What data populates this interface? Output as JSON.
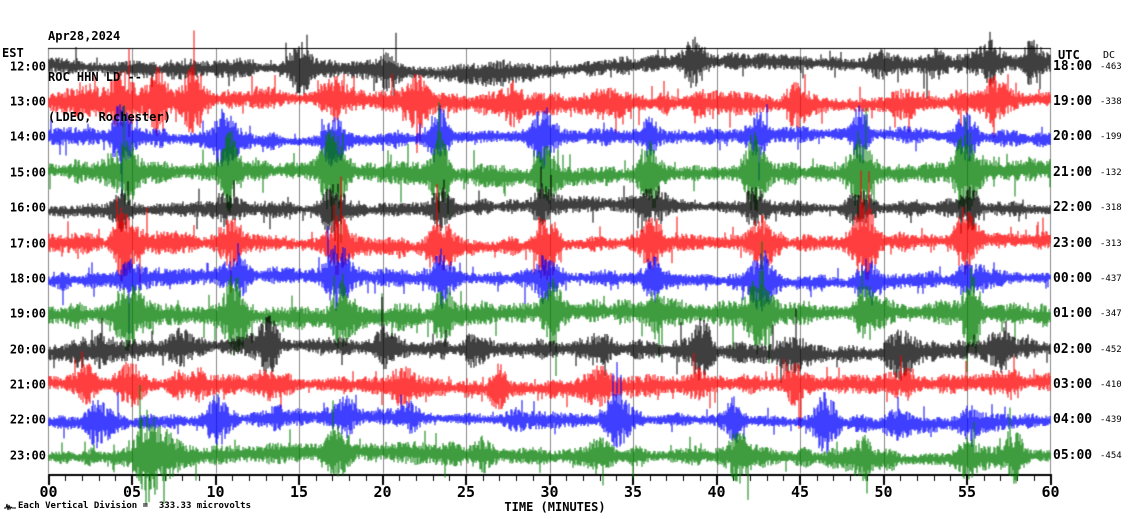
{
  "header": {
    "date": "Apr28,2024",
    "station": "ROC HHN LD --",
    "network": "(LDEO, Rochester)"
  },
  "chart_data": {
    "type": "line",
    "subtype": "helicorder-seismogram",
    "x_axis": {
      "label": "TIME (MINUTES)",
      "min": 0,
      "max": 60,
      "major_tick_step": 5,
      "minor_tick_step": 1,
      "tick_labels": [
        "00",
        "05",
        "10",
        "15",
        "20",
        "25",
        "30",
        "35",
        "40",
        "45",
        "50",
        "55",
        "60"
      ]
    },
    "left_axis": {
      "label": "EST"
    },
    "right_axis": {
      "label": "UTC"
    },
    "dc_column": {
      "label": "DC"
    },
    "caption": "Each Vertical Division =  333.33 microvolts",
    "microvolts_per_division": 333.33,
    "grid": "on",
    "colors": {
      "grid": "#8a8a8a",
      "axis": "#000000",
      "trace_cycle": [
        "#000000",
        "#ff0000",
        "#0000ff",
        "#007f00"
      ]
    },
    "rows": [
      {
        "est": "12:00",
        "utc": "18:00",
        "dc": "-463",
        "color": "#000000",
        "amp": 6.5,
        "wander": 5,
        "seed": 101,
        "events": [
          [
            15,
            2.6
          ],
          [
            20.5,
            1.6
          ],
          [
            27,
            1.2
          ],
          [
            38.5,
            1.8
          ],
          [
            49.5,
            2.2
          ],
          [
            53,
            2.0
          ],
          [
            56.5,
            2.8
          ],
          [
            59,
            2.6
          ]
        ]
      },
      {
        "est": "13:00",
        "utc": "19:00",
        "dc": "-338",
        "color": "#ff0000",
        "amp": 8,
        "wander": 2.5,
        "seed": 102,
        "events": [
          [
            2.2,
            1.4
          ],
          [
            4.3,
            1.8
          ],
          [
            6.4,
            2.0
          ],
          [
            8.6,
            1.6
          ],
          [
            17,
            1.2
          ],
          [
            22,
            1.6
          ],
          [
            28,
            1.4
          ],
          [
            33.5,
            1.6
          ],
          [
            39,
            1.8
          ],
          [
            45,
            1.4
          ],
          [
            51,
            1.6
          ],
          [
            56.8,
            2.2
          ]
        ]
      },
      {
        "est": "14:00",
        "utc": "20:00",
        "dc": "-199",
        "color": "#0000ff",
        "amp": 6,
        "wander": 2.5,
        "seed": 103,
        "events": [
          [
            4.3,
            2.6
          ],
          [
            10.6,
            2.8
          ],
          [
            16.9,
            2.4
          ],
          [
            23.2,
            2.6
          ],
          [
            29.6,
            2.8
          ],
          [
            35.9,
            2.4
          ],
          [
            42.2,
            2.6
          ],
          [
            48.5,
            2.5
          ],
          [
            54.8,
            2.7
          ]
        ]
      },
      {
        "est": "15:00",
        "utc": "21:00",
        "dc": "-132",
        "color": "#007f00",
        "amp": 8,
        "wander": 2.5,
        "seed": 104,
        "events": [
          [
            4.4,
            3.0
          ],
          [
            10.7,
            2.6
          ],
          [
            17.0,
            3.0
          ],
          [
            23.3,
            2.6
          ],
          [
            29.7,
            3.0
          ],
          [
            36.0,
            2.6
          ],
          [
            42.3,
            2.8
          ],
          [
            48.6,
            2.6
          ],
          [
            54.9,
            3.0
          ]
        ]
      },
      {
        "est": "16:00",
        "utc": "22:00",
        "dc": "-318",
        "color": "#000000",
        "amp": 5.5,
        "wander": 2.5,
        "seed": 105,
        "events": [
          [
            4.5,
            2.8
          ],
          [
            10.8,
            2.6
          ],
          [
            17.1,
            2.9
          ],
          [
            23.4,
            2.5
          ],
          [
            29.8,
            2.9
          ],
          [
            36.1,
            2.5
          ],
          [
            42.4,
            2.7
          ],
          [
            48.7,
            3.0
          ],
          [
            55.0,
            2.8
          ]
        ]
      },
      {
        "est": "17:00",
        "utc": "23:00",
        "dc": "-313",
        "color": "#ff0000",
        "amp": 7,
        "wander": 2.5,
        "seed": 106,
        "events": [
          [
            4.6,
            3.4
          ],
          [
            10.9,
            3.0
          ],
          [
            17.2,
            3.2
          ],
          [
            23.5,
            2.8
          ],
          [
            29.9,
            3.2
          ],
          [
            36.2,
            2.8
          ],
          [
            42.5,
            3.0
          ],
          [
            48.8,
            3.2
          ],
          [
            55.1,
            3.4
          ]
        ]
      },
      {
        "est": "18:00",
        "utc": "00:00",
        "dc": "-437",
        "color": "#0000ff",
        "amp": 6,
        "wander": 2.5,
        "seed": 107,
        "events": [
          [
            4.7,
            3.0
          ],
          [
            11.0,
            2.6
          ],
          [
            17.3,
            2.8
          ],
          [
            23.6,
            2.5
          ],
          [
            30.0,
            2.8
          ],
          [
            36.3,
            2.4
          ],
          [
            42.6,
            2.6
          ],
          [
            48.9,
            3.2
          ],
          [
            55.2,
            2.8
          ]
        ]
      },
      {
        "est": "19:00",
        "utc": "01:00",
        "dc": "-347",
        "color": "#007f00",
        "amp": 8.5,
        "wander": 2.5,
        "seed": 108,
        "events": [
          [
            4.8,
            2.4
          ],
          [
            11.1,
            2.2
          ],
          [
            17.4,
            2.4
          ],
          [
            23.7,
            2.2
          ],
          [
            30.1,
            2.6
          ],
          [
            36.4,
            2.2
          ],
          [
            42.7,
            2.4
          ],
          [
            49.0,
            2.6
          ],
          [
            55.3,
            2.4
          ]
        ]
      },
      {
        "est": "20:00",
        "utc": "02:00",
        "dc": "-452",
        "color": "#000000",
        "amp": 7,
        "wander": 3,
        "seed": 109,
        "events": [
          [
            2.5,
            1.6
          ],
          [
            8,
            2.4
          ],
          [
            13,
            2.6
          ],
          [
            20,
            1.4
          ],
          [
            26,
            2.2
          ],
          [
            33,
            1.2
          ],
          [
            39,
            2.4
          ],
          [
            44.5,
            1.8
          ],
          [
            51,
            2.4
          ],
          [
            57,
            1.4
          ]
        ]
      },
      {
        "est": "21:00",
        "utc": "03:00",
        "dc": "-410",
        "color": "#ff0000",
        "amp": 7,
        "wander": 2.5,
        "seed": 110,
        "events": [
          [
            2,
            1.6
          ],
          [
            5,
            1.8
          ],
          [
            8.5,
            1.4
          ],
          [
            13,
            1.2
          ],
          [
            21,
            1.8
          ],
          [
            27,
            1.6
          ],
          [
            33,
            1.4
          ],
          [
            39,
            1.2
          ],
          [
            45,
            1.6
          ],
          [
            51.5,
            1.8
          ],
          [
            57,
            1.2
          ]
        ]
      },
      {
        "est": "22:00",
        "utc": "04:00",
        "dc": "-439",
        "color": "#0000ff",
        "amp": 6,
        "wander": 2.5,
        "seed": 111,
        "events": [
          [
            3,
            1.8
          ],
          [
            10,
            2.4
          ],
          [
            14,
            1.6
          ],
          [
            18,
            2.6
          ],
          [
            21.5,
            1.8
          ],
          [
            28,
            1.2
          ],
          [
            34,
            2.0
          ],
          [
            41,
            1.6
          ],
          [
            46.5,
            2.2
          ],
          [
            51,
            1.4
          ],
          [
            55,
            2.0
          ]
        ]
      },
      {
        "est": "23:00",
        "utc": "05:00",
        "dc": "-454",
        "color": "#007f00",
        "amp": 7.5,
        "wander": 2.5,
        "seed": 112,
        "events": [
          [
            5.9,
            3.6
          ],
          [
            7.2,
            2.2
          ],
          [
            17.5,
            2.0
          ],
          [
            26,
            1.8
          ],
          [
            33,
            1.2
          ],
          [
            41.5,
            1.6
          ],
          [
            49,
            1.2
          ],
          [
            55,
            2.2
          ],
          [
            58,
            1.4
          ]
        ]
      }
    ]
  }
}
